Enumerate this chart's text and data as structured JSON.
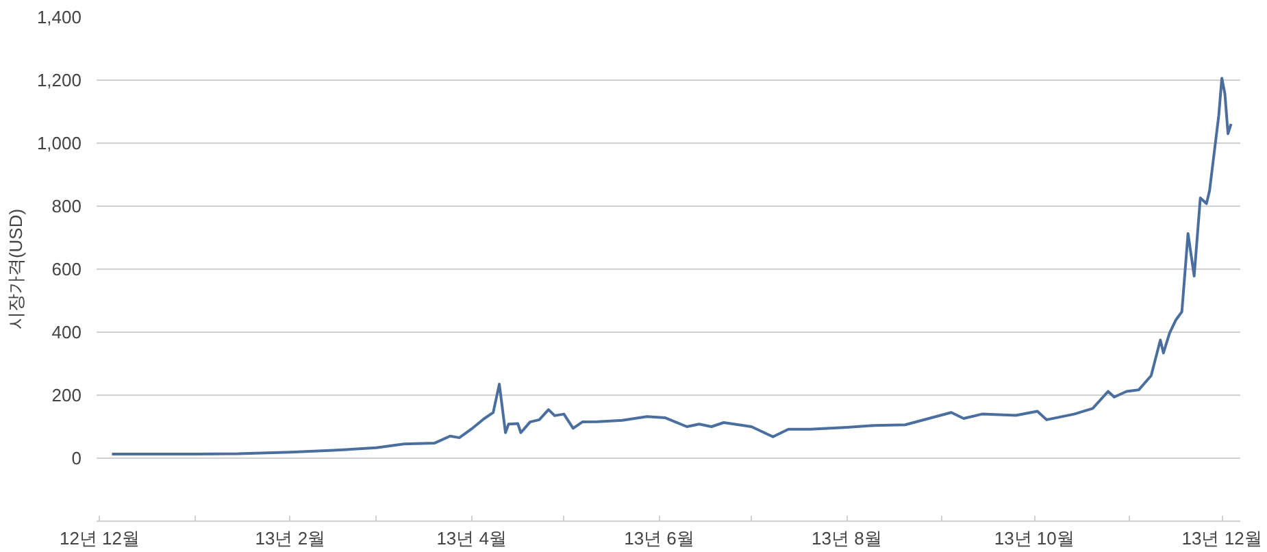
{
  "chart_data": {
    "type": "line",
    "ylabel": "시장가격(USD)",
    "x": [
      "2012-12-05",
      "2012-12-20",
      "2013-01-01",
      "2013-01-15",
      "2013-02-01",
      "2013-02-15",
      "2013-03-01",
      "2013-03-10",
      "2013-03-20",
      "2013-03-25",
      "2013-03-28",
      "2013-04-01",
      "2013-04-05",
      "2013-04-08",
      "2013-04-10",
      "2013-04-12",
      "2013-04-13",
      "2013-04-16",
      "2013-04-17",
      "2013-04-20",
      "2013-04-23",
      "2013-04-26",
      "2013-04-28",
      "2013-05-01",
      "2013-05-04",
      "2013-05-07",
      "2013-05-12",
      "2013-05-20",
      "2013-05-28",
      "2013-06-03",
      "2013-06-10",
      "2013-06-14",
      "2013-06-18",
      "2013-06-22",
      "2013-07-01",
      "2013-07-08",
      "2013-07-13",
      "2013-07-20",
      "2013-08-01",
      "2013-08-10",
      "2013-08-20",
      "2013-09-04",
      "2013-09-08",
      "2013-09-14",
      "2013-09-25",
      "2013-10-02",
      "2013-10-05",
      "2013-10-14",
      "2013-10-20",
      "2013-10-25",
      "2013-10-27",
      "2013-10-31",
      "2013-11-04",
      "2013-11-08",
      "2013-11-11",
      "2013-11-12",
      "2013-11-14",
      "2013-11-16",
      "2013-11-18",
      "2013-11-20",
      "2013-11-22",
      "2013-11-24",
      "2013-11-26",
      "2013-11-27",
      "2013-11-30",
      "2013-12-01",
      "2013-12-02",
      "2013-12-03",
      "2013-12-04"
    ],
    "series": [
      {
        "color": "#4a6f9e",
        "values": [
          13,
          13,
          13,
          14,
          19,
          25,
          33,
          45,
          48,
          70,
          65,
          93,
          125,
          145,
          235,
          81,
          108,
          110,
          81,
          115,
          122,
          154,
          135,
          140,
          95,
          115,
          116,
          120,
          132,
          128,
          100,
          108,
          100,
          113,
          100,
          68,
          92,
          92,
          98,
          104,
          106,
          145,
          126,
          140,
          136,
          149,
          122,
          140,
          158,
          212,
          194,
          212,
          217,
          262,
          375,
          334,
          397,
          438,
          465,
          713,
          578,
          826,
          808,
          849,
          1088,
          1206,
          1156,
          1030,
          1061
        ]
      }
    ],
    "xlim": [
      "2012-11-30",
      "2013-12-07"
    ],
    "ylim": [
      -200,
      1400
    ],
    "xticks": [
      {
        "value": "2012-12-01",
        "label": "12년 12월"
      },
      {
        "value": "2013-01-01",
        "label": null
      },
      {
        "value": "2013-02-01",
        "label": "13년 2월"
      },
      {
        "value": "2013-03-01",
        "label": null
      },
      {
        "value": "2013-04-01",
        "label": "13년 4월"
      },
      {
        "value": "2013-05-01",
        "label": null
      },
      {
        "value": "2013-06-01",
        "label": "13년 6월"
      },
      {
        "value": "2013-07-01",
        "label": null
      },
      {
        "value": "2013-08-01",
        "label": "13년 8월"
      },
      {
        "value": "2013-09-01",
        "label": null
      },
      {
        "value": "2013-10-01",
        "label": "13년 10월"
      },
      {
        "value": "2013-11-01",
        "label": null
      },
      {
        "value": "2013-12-01",
        "label": "13년 12월"
      }
    ],
    "yticks": [
      0,
      200,
      400,
      600,
      800,
      {
        "value": 1000,
        "label": "1,000"
      },
      {
        "value": 1200,
        "label": "1,200"
      },
      {
        "value": 1400,
        "label": "1,400"
      }
    ],
    "grid": "y",
    "line_style": "solid"
  }
}
